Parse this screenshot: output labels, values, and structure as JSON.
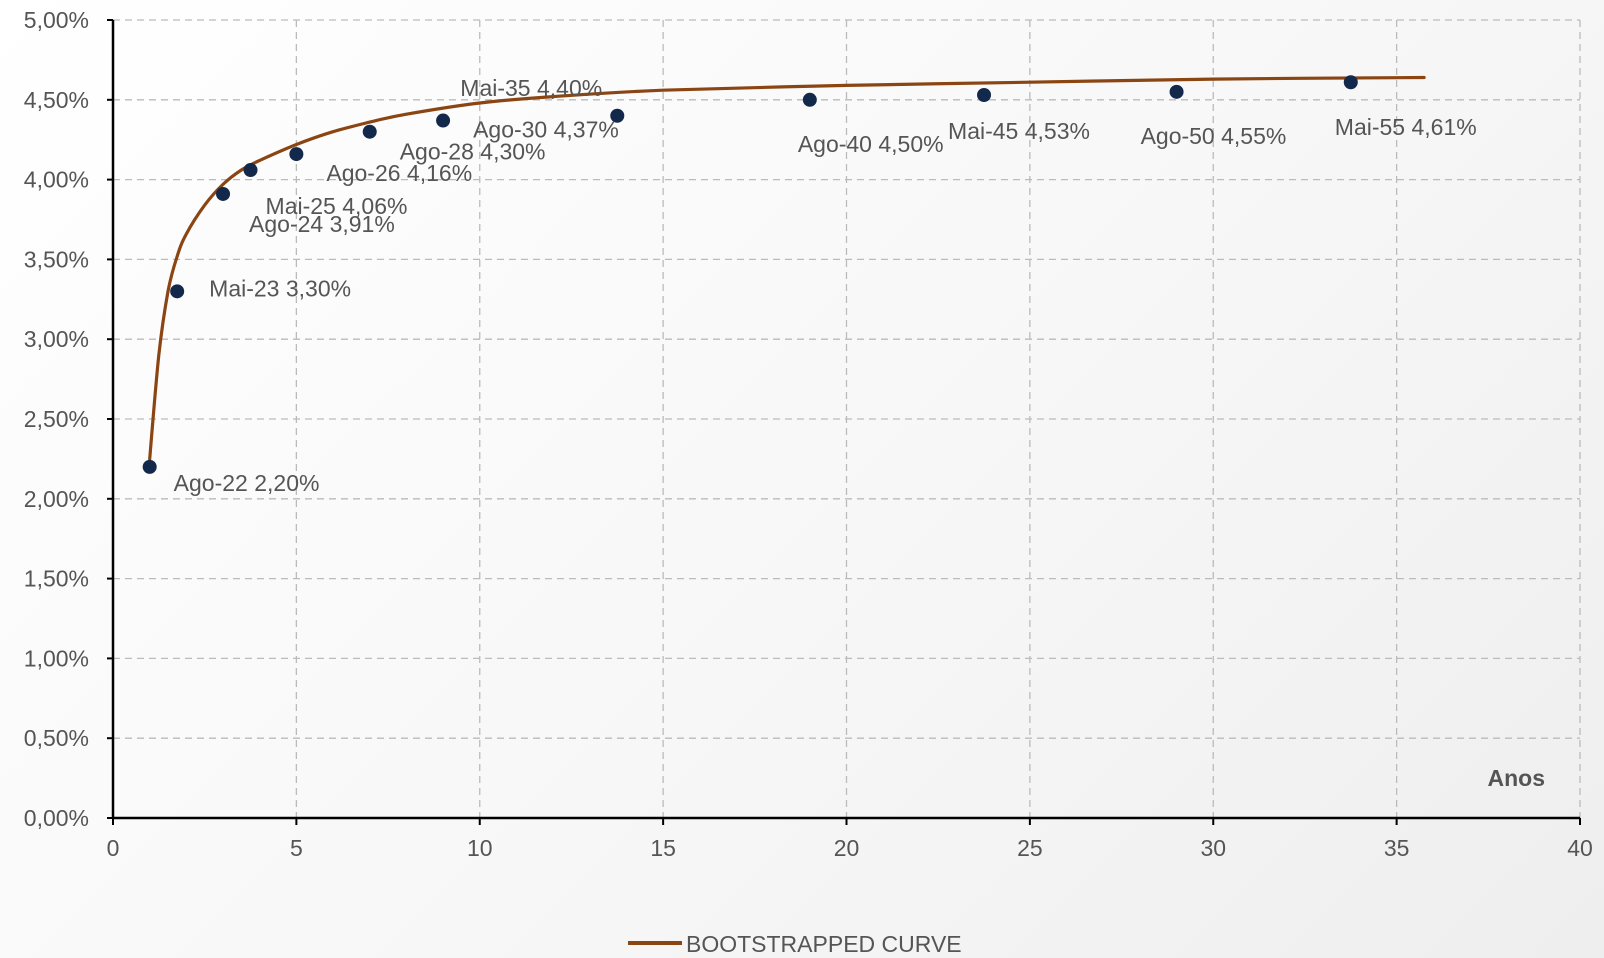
{
  "chart_data": {
    "type": "scatter",
    "xlabel": "Anos",
    "ylabel": "",
    "xlim": [
      0,
      40
    ],
    "ylim": [
      0,
      5
    ],
    "x_ticks": [
      "0",
      "5",
      "10",
      "15",
      "20",
      "25",
      "30",
      "35",
      "40"
    ],
    "y_ticks": [
      "0,00%",
      "0,50%",
      "1,00%",
      "1,50%",
      "2,00%",
      "2,50%",
      "3,00%",
      "3,50%",
      "4,00%",
      "4,50%",
      "5,00%"
    ],
    "grid": true,
    "legend_position": "bottom",
    "legend": [
      "BOOTSTRAPPED CURVE"
    ],
    "colors": {
      "curve": "#8B4513",
      "points": "#13294B",
      "grid": "#bbbbbb",
      "axis": "#000000",
      "text": "#555555"
    },
    "points": [
      {
        "label": "Ago-22 2,20%",
        "x": 1.0,
        "y": 2.2
      },
      {
        "label": "Mai-23 3,30%",
        "x": 1.75,
        "y": 3.3
      },
      {
        "label": "Ago-24 3,91%",
        "x": 3.0,
        "y": 3.91
      },
      {
        "label": "Mai-25 4,06%",
        "x": 3.75,
        "y": 4.06
      },
      {
        "label": "Ago-26 4,16%",
        "x": 5.0,
        "y": 4.16
      },
      {
        "label": "Ago-28 4,30%",
        "x": 7.0,
        "y": 4.3
      },
      {
        "label": "Ago-30 4,37%",
        "x": 9.0,
        "y": 4.37
      },
      {
        "label": "Mai-35 4,40%",
        "x": 13.75,
        "y": 4.4
      },
      {
        "label": "Ago-40 4,50%",
        "x": 19.0,
        "y": 4.5
      },
      {
        "label": "Mai-45 4,53%",
        "x": 23.75,
        "y": 4.53
      },
      {
        "label": "Ago-50 4,55%",
        "x": 29.0,
        "y": 4.55
      },
      {
        "label": "Mai-55 4,61%",
        "x": 33.75,
        "y": 4.61
      }
    ],
    "curve": {
      "name": "BOOTSTRAPPED CURVE",
      "x": [
        1.0,
        1.25,
        1.5,
        1.75,
        2.0,
        2.5,
        3.0,
        3.5,
        4.0,
        5.0,
        6.0,
        7.0,
        8.0,
        10.0,
        12.0,
        15.0,
        20.0,
        25.0,
        30.0,
        35.75
      ],
      "y": [
        2.25,
        2.9,
        3.3,
        3.52,
        3.66,
        3.84,
        3.97,
        4.06,
        4.12,
        4.22,
        4.3,
        4.36,
        4.41,
        4.48,
        4.52,
        4.56,
        4.59,
        4.61,
        4.63,
        4.64
      ]
    }
  }
}
